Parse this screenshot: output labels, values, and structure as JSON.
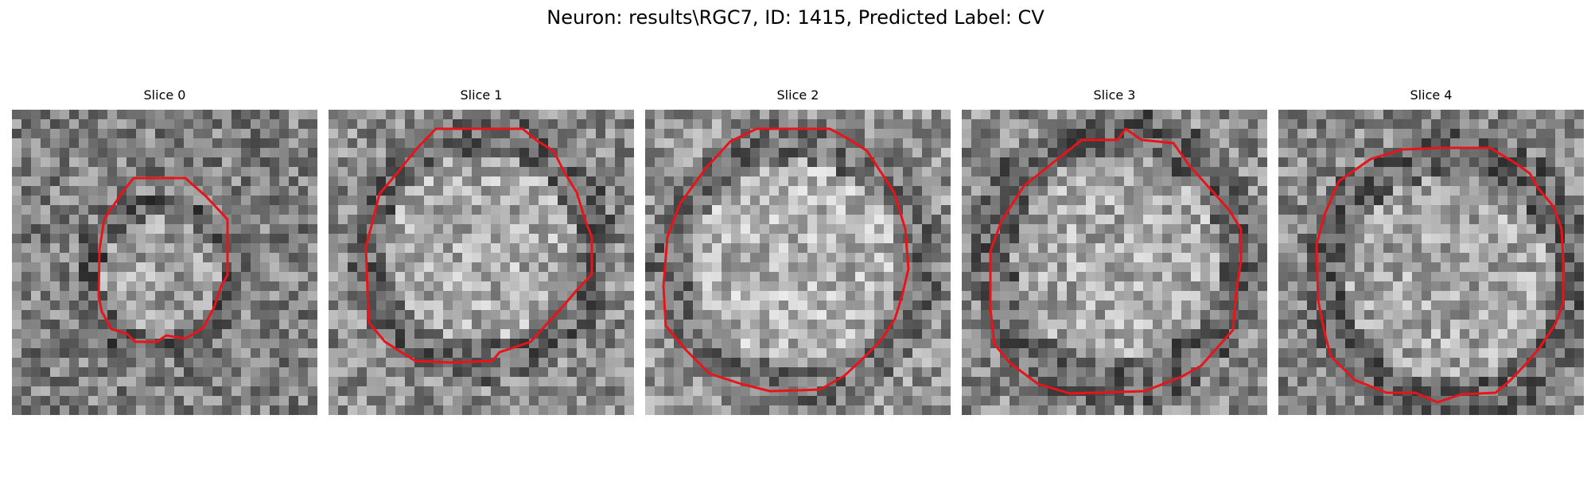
{
  "figure": {
    "title": "Neuron: results\\RGC7, ID: 1415, Predicted Label: CV"
  },
  "colors": {
    "contour": "#e8141a",
    "background": "#ffffff"
  },
  "slices": [
    {
      "label": "Slice 0",
      "seed": 11,
      "brightness": 0.0
    },
    {
      "label": "Slice 1",
      "seed": 23,
      "brightness": 0.05
    },
    {
      "label": "Slice 2",
      "seed": 37,
      "brightness": 0.08
    },
    {
      "label": "Slice 3",
      "seed": 41,
      "brightness": 0.04
    },
    {
      "label": "Slice 4",
      "seed": 53,
      "brightness": 0.03
    }
  ]
}
